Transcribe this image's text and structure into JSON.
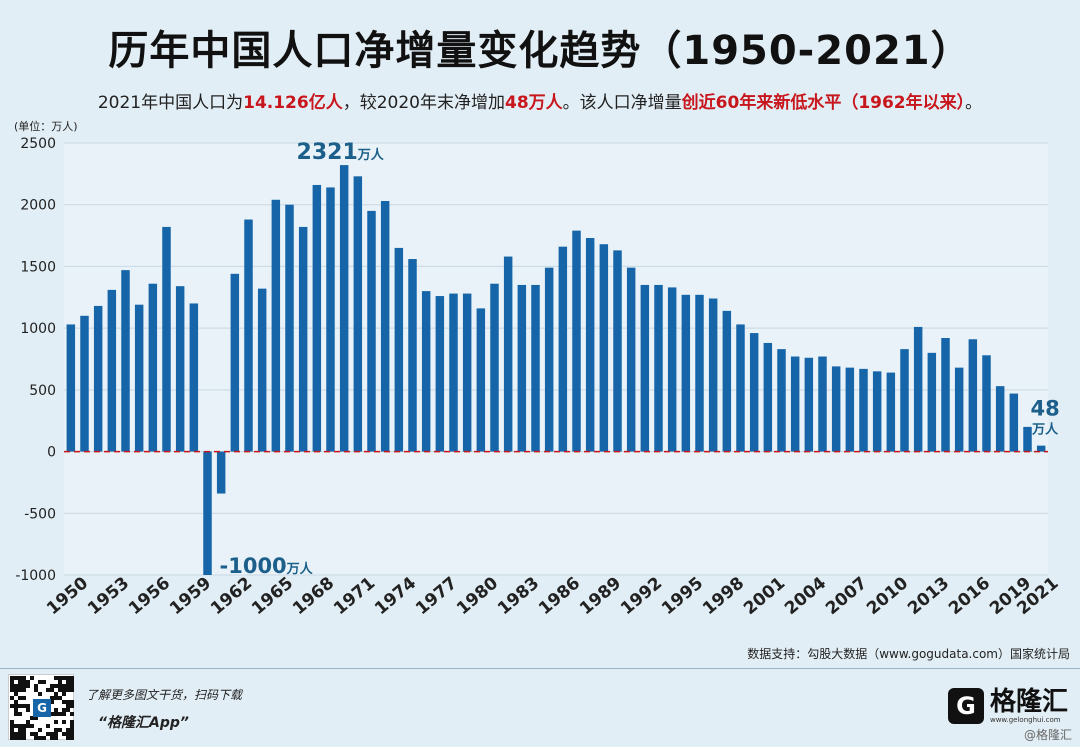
{
  "title": "历年中国人口净增量变化趋势（1950-2021）",
  "subtitle": {
    "part1": "2021年中国人口为",
    "highlight1": "14.126亿人",
    "part2": "，较2020年末净增加",
    "highlight2": "48万人",
    "part3": "。该人口净增量",
    "highlight3": "创近60年来新低水平（1962年以来）",
    "part4": "。"
  },
  "unit_label": "(单位：万人)",
  "source": "数据支持：勾股大数据（www.gogudata.com）国家统计局",
  "promo": {
    "line1": "了解更多图文干货，扫码下载",
    "line2": "“格隆汇App”"
  },
  "brand": {
    "mark": "G",
    "name": "格隆汇",
    "url": "www.gelonghui.com"
  },
  "watermark": "@格隆汇",
  "colors": {
    "bar": "#1565a8",
    "zero_line": "#c8161d",
    "annotation": "#1c5f8a",
    "red": "#c8161d"
  },
  "chart_data": {
    "type": "bar",
    "title": "历年中国人口净增量变化趋势（1950-2021）",
    "xlabel": "",
    "ylabel": "万人",
    "ylim": [
      -1000,
      2500
    ],
    "yticks": [
      -1000,
      -500,
      0,
      500,
      1000,
      1500,
      2000,
      2500
    ],
    "xtick_labels": [
      "1950",
      "1953",
      "1956",
      "1959",
      "1962",
      "1965",
      "1968",
      "1971",
      "1974",
      "1977",
      "1980",
      "1983",
      "1986",
      "1989",
      "1992",
      "1995",
      "1998",
      "2001",
      "2004",
      "2007",
      "2010",
      "2013",
      "2016",
      "2019",
      "2021"
    ],
    "categories": [
      "1950",
      "1951",
      "1952",
      "1953",
      "1954",
      "1955",
      "1956",
      "1957",
      "1958",
      "1959",
      "1960",
      "1961",
      "1962",
      "1963",
      "1964",
      "1965",
      "1966",
      "1967",
      "1968",
      "1969",
      "1970",
      "1971",
      "1972",
      "1973",
      "1974",
      "1975",
      "1976",
      "1977",
      "1978",
      "1979",
      "1980",
      "1981",
      "1982",
      "1983",
      "1984",
      "1985",
      "1986",
      "1987",
      "1988",
      "1989",
      "1990",
      "1991",
      "1992",
      "1993",
      "1994",
      "1995",
      "1996",
      "1997",
      "1998",
      "1999",
      "2000",
      "2001",
      "2002",
      "2003",
      "2004",
      "2005",
      "2006",
      "2007",
      "2008",
      "2009",
      "2010",
      "2011",
      "2012",
      "2013",
      "2014",
      "2015",
      "2016",
      "2017",
      "2018",
      "2019",
      "2020",
      "2021"
    ],
    "values": [
      1030,
      1100,
      1180,
      1310,
      1470,
      1190,
      1360,
      1820,
      1340,
      1200,
      -1000,
      -340,
      1440,
      1880,
      1320,
      2040,
      2000,
      1820,
      2160,
      2140,
      2321,
      2230,
      1950,
      2030,
      1650,
      1560,
      1300,
      1260,
      1280,
      1280,
      1160,
      1360,
      1580,
      1350,
      1350,
      1490,
      1660,
      1790,
      1730,
      1680,
      1630,
      1490,
      1350,
      1350,
      1330,
      1270,
      1270,
      1240,
      1140,
      1030,
      960,
      880,
      830,
      770,
      760,
      770,
      690,
      680,
      670,
      650,
      640,
      830,
      1010,
      800,
      920,
      680,
      910,
      780,
      530,
      470,
      200,
      48
    ],
    "annotations": [
      {
        "category": "1970",
        "value": "2321",
        "unit": "万人"
      },
      {
        "category": "1960",
        "value": "-1000",
        "unit": "万人"
      },
      {
        "category": "2021",
        "value": "48",
        "unit": "万人"
      }
    ],
    "grid": true,
    "legend": "none"
  }
}
